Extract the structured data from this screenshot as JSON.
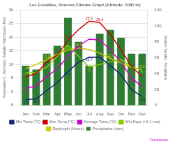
{
  "chart_data": {
    "type": "bar",
    "title": "Les Escaldes, Andorra Climate Graph (Altitude: 1080 m)",
    "categories": [
      "Jan",
      "Feb",
      "Mar",
      "Apr",
      "May",
      "Jun",
      "Jul",
      "Aug",
      "Sep",
      "Oct",
      "Nov",
      "Dec"
    ],
    "series": [
      {
        "name": "Precipitation (mm)",
        "type": "bar",
        "axis": "y2",
        "color": "#2e7d32",
        "values": [
          50,
          45,
          65,
          75,
          110,
          80,
          50,
          90,
          95,
          85,
          65,
          65
        ]
      },
      {
        "name": "Min Temp (°C)",
        "type": "line",
        "color": "#1a237e",
        "values": [
          -2.9,
          -2.6,
          0.4,
          3.4,
          7.4,
          10.8,
          12.7,
          12.6,
          9.7,
          6.2,
          0.8,
          -1.8
        ],
        "value_labels": [
          "-2.9",
          "-2.6",
          null,
          null,
          "7.4",
          null,
          "12.7",
          null,
          "9.7",
          null,
          null,
          "-1.8"
        ]
      },
      {
        "name": "Max Temp (°C)",
        "type": "line",
        "color": "#cc0000",
        "values": [
          5.4,
          6.8,
          10.8,
          13.5,
          18.8,
          22.8,
          25.9,
          25.4,
          21.0,
          15.5,
          9.2,
          5.6
        ],
        "value_labels": [
          null,
          null,
          null,
          null,
          "18.8",
          null,
          "25.9",
          "25.4",
          null,
          null,
          null,
          null
        ]
      },
      {
        "name": "Average Temp (°C)",
        "type": "line",
        "color": "#cc00cc",
        "values": [
          1.3,
          2.1,
          5.6,
          8.4,
          13.0,
          16.8,
          19.3,
          19.0,
          15.4,
          10.9,
          5.0,
          1.9
        ],
        "value_labels": [
          "1.3",
          null,
          null,
          null,
          null,
          "16.8",
          null,
          null,
          null,
          null,
          "5.0",
          null
        ]
      },
      {
        "name": "Wet Days (>0.1 mm)",
        "type": "line",
        "color": "#88cc00",
        "values": [
          7.0,
          7.0,
          9.0,
          13.0,
          17.0,
          13.0,
          9.0,
          10.0,
          11.0,
          12.0,
          9.0,
          8.0
        ],
        "value_labels": [
          "7",
          null,
          null,
          null,
          "17",
          null,
          "9",
          null,
          null,
          "12",
          null,
          "8"
        ]
      },
      {
        "name": "Daylength (Hours)",
        "type": "line",
        "color": "#cccc00",
        "values": [
          8.5,
          10.0,
          11.8,
          13.8,
          15.3,
          16.0,
          15.5,
          14.2,
          12.3,
          10.5,
          9.0,
          8.0
        ],
        "value_labels": [
          null,
          null,
          "11.8",
          null,
          null,
          "16.0",
          null,
          null,
          "12.3",
          null,
          null,
          "8.0"
        ]
      }
    ],
    "ylabel": "Temperature/°C / Wet Days / Sunlight / Wind Speed / Preci",
    "y2label": "Relative Humidity / Precipitation",
    "ylim": [
      -5,
      30
    ],
    "yticks": [
      -5,
      0,
      5,
      10,
      15,
      20,
      25,
      30
    ],
    "y2lim": [
      0,
      120
    ],
    "y2ticks": [
      0,
      20,
      40,
      60,
      80,
      100,
      120
    ],
    "grid": true,
    "legend": "bottom",
    "annotations": [
      {
        "text": "Climatemps",
        "color": "#cc00cc"
      }
    ]
  }
}
